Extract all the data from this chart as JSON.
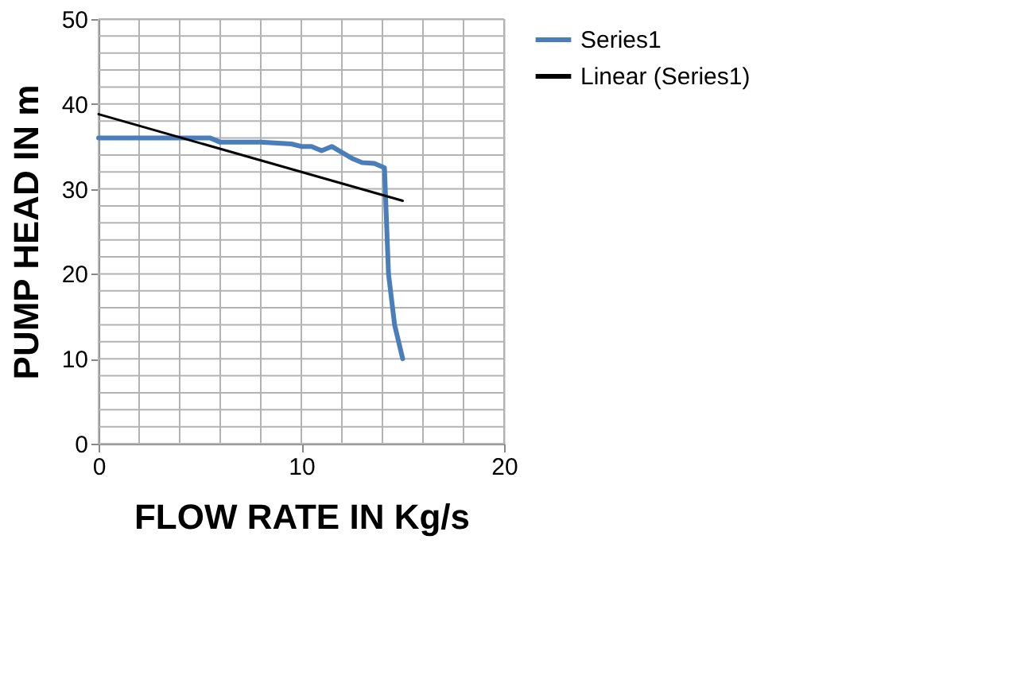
{
  "chart_data": {
    "type": "line",
    "xlabel": "FLOW RATE IN Kg/s",
    "ylabel": "PUMP HEAD IN m",
    "xlim": [
      0,
      20
    ],
    "xticks": [
      0,
      {
        "value": 2,
        "label": null
      },
      {
        "value": 4,
        "label": null
      },
      {
        "value": 6,
        "label": null
      },
      {
        "value": 8,
        "label": null
      },
      10,
      {
        "value": 12,
        "label": null
      },
      {
        "value": 14,
        "label": null
      },
      {
        "value": 16,
        "label": null
      },
      {
        "value": 18,
        "label": null
      },
      20
    ],
    "ylim": [
      0,
      50
    ],
    "yticks": [
      0,
      {
        "value": 2,
        "label": null
      },
      {
        "value": 4,
        "label": null
      },
      {
        "value": 6,
        "label": null
      },
      {
        "value": 8,
        "label": null
      },
      10,
      {
        "value": 12,
        "label": null
      },
      {
        "value": 14,
        "label": null
      },
      {
        "value": 16,
        "label": null
      },
      {
        "value": 18,
        "label": null
      },
      20,
      {
        "value": 22,
        "label": null
      },
      {
        "value": 24,
        "label": null
      },
      {
        "value": 26,
        "label": null
      },
      {
        "value": 28,
        "label": null
      },
      30,
      {
        "value": 32,
        "label": null
      },
      {
        "value": 34,
        "label": null
      },
      {
        "value": 36,
        "label": null
      },
      {
        "value": 38,
        "label": null
      },
      40,
      {
        "value": 42,
        "label": null
      },
      {
        "value": 44,
        "label": null
      },
      {
        "value": 46,
        "label": null
      },
      {
        "value": 48,
        "label": null
      },
      50
    ],
    "grid": true,
    "legend": "right",
    "series": [
      {
        "name": "Series1",
        "color": "#4a7ebb",
        "x": [
          0,
          2,
          4,
          5.5,
          6,
          8,
          9.5,
          10,
          10.5,
          11,
          11.5,
          12,
          12.5,
          13,
          13.6,
          14.1,
          14.3,
          14.6,
          15
        ],
        "values": [
          36,
          36,
          36,
          36,
          35.5,
          35.5,
          35.3,
          35,
          35,
          34.5,
          35,
          34.3,
          33.6,
          33.1,
          33,
          32.5,
          20,
          14,
          10
        ]
      },
      {
        "name": "Linear (Series1)",
        "color": "#000000",
        "type": "line",
        "x": [
          0,
          15
        ],
        "values": [
          38.8,
          28.6
        ]
      }
    ]
  }
}
